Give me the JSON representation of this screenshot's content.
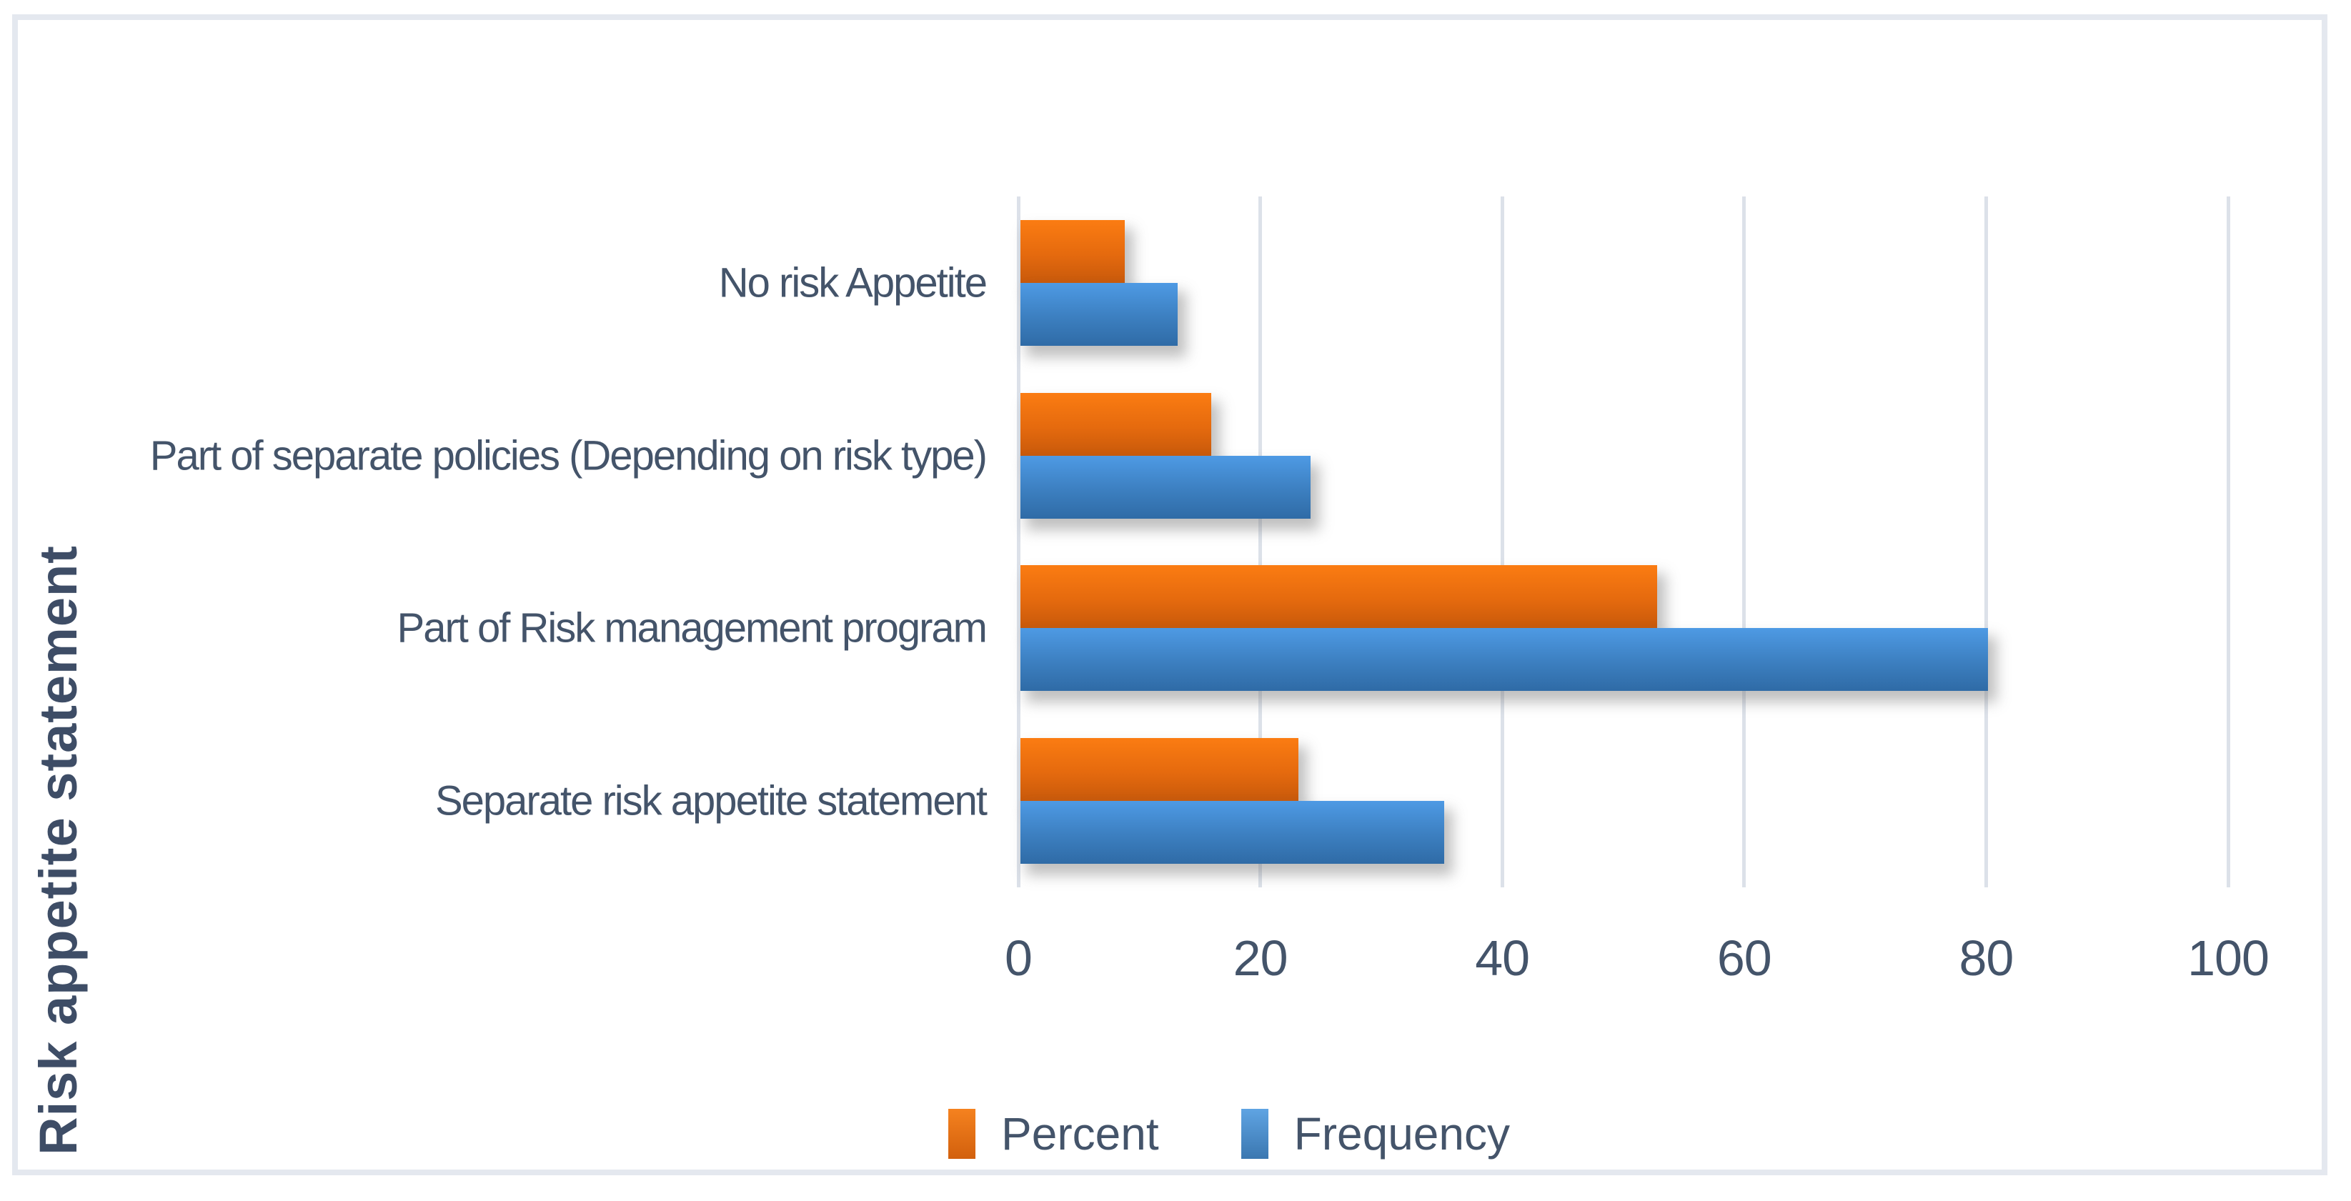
{
  "chart_data": {
    "type": "bar",
    "orientation": "horizontal",
    "title": "",
    "xlabel": "",
    "ylabel": "Risk appetite statement",
    "categories": [
      "No risk Appetite",
      "Part of separate policies (Depending on risk type)",
      "Part of Risk management program",
      "Separate risk appetite statement"
    ],
    "series": [
      {
        "name": "Percent",
        "values": [
          8.6,
          15.8,
          52.6,
          23
        ],
        "color_top": "#FB7C12",
        "color_bottom": "#C8590B"
      },
      {
        "name": "Frequency",
        "values": [
          13,
          24,
          80,
          35
        ],
        "color_top": "#4E9AE4",
        "color_bottom": "#2F6BA6"
      }
    ],
    "x_ticks": [
      0,
      20,
      40,
      60,
      80,
      100
    ],
    "xlim": [
      0,
      100
    ],
    "grid": "vertical-gridlines",
    "legend_position": "bottom",
    "category_order_on_screen": "top-to-bottom"
  },
  "legend": {
    "items": [
      {
        "label": "Percent",
        "swatch_color": "#E36C09"
      },
      {
        "label": "Frequency",
        "swatch_color": "#4A90D9"
      }
    ]
  },
  "colors": {
    "text": "#44546A",
    "gridline": "#DCE1E9",
    "frame_border": "#E4E8EF",
    "background": "#FFFFFF"
  }
}
